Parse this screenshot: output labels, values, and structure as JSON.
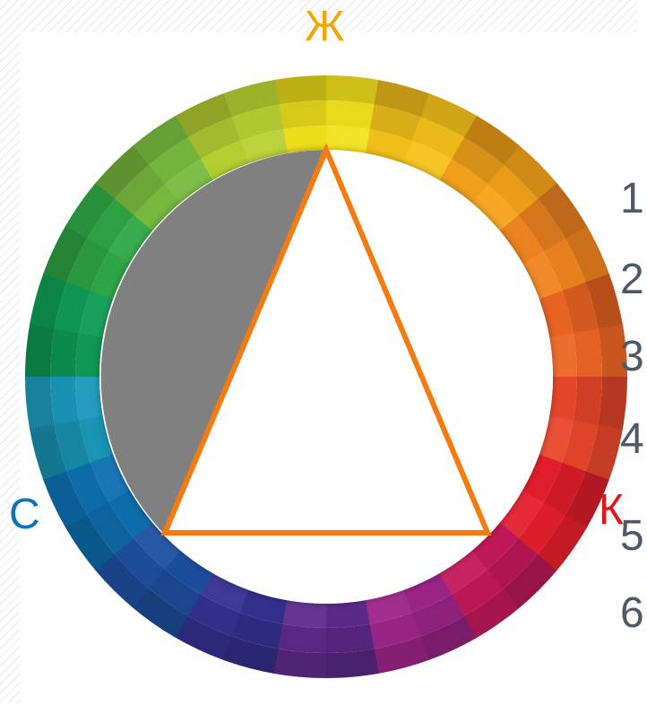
{
  "labels": {
    "yellow": "Ж",
    "blue": "С",
    "red": "К"
  },
  "label_colors": {
    "yellow": "#f5a500",
    "blue": "#0e72b8",
    "red": "#e6141b"
  },
  "numbers": [
    "1",
    "2",
    "3",
    "4",
    "5",
    "6"
  ],
  "colors": {
    "number_text": "#4d5a66",
    "triangle_stroke": "#f57a10",
    "filled_region": "#808080"
  },
  "wheel_hues": [
    "#f2e21b",
    "#f5c21a",
    "#f4a21a",
    "#f18420",
    "#ec6523",
    "#e8472a",
    "#e51e2c",
    "#c3185a",
    "#9d2489",
    "#5d2a8b",
    "#34308f",
    "#1d4fa0",
    "#0d6fb0",
    "#1a97b9",
    "#0e9b54",
    "#2fa845",
    "#78bb3e",
    "#b8d132"
  ]
}
